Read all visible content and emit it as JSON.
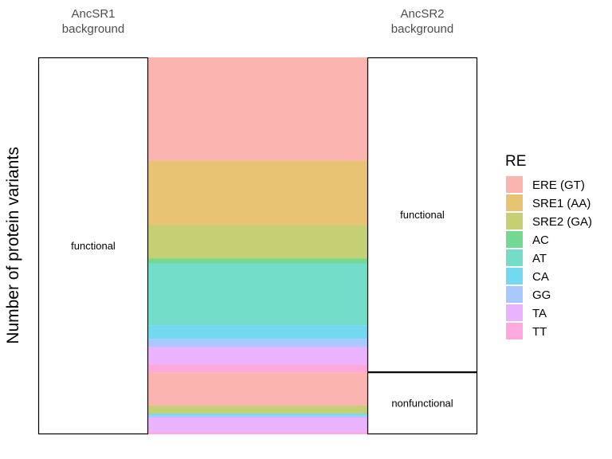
{
  "chart_data": {
    "type": "alluvial",
    "ylabel": "Number of protein variants",
    "axes": [
      {
        "header": [
          "AncSR1",
          "background"
        ],
        "strata": [
          {
            "label": "functional",
            "value": 474
          }
        ]
      },
      {
        "header": [
          "AncSR2",
          "background"
        ],
        "strata": [
          {
            "label": "functional",
            "value": 396
          },
          {
            "label": "nonfunctional",
            "value": 78
          }
        ]
      }
    ],
    "legend": {
      "title": "RE",
      "position": "right",
      "entries": [
        {
          "label": "ERE (GT)",
          "color": "#F8766D"
        },
        {
          "label": "SRE1 (AA)",
          "color": "#D39200"
        },
        {
          "label": "SRE2 (GA)",
          "color": "#93AA00"
        },
        {
          "label": "AC",
          "color": "#00BA38"
        },
        {
          "label": "AT",
          "color": "#00C19F"
        },
        {
          "label": "CA",
          "color": "#00B9E3"
        },
        {
          "label": "GG",
          "color": "#619CFF"
        },
        {
          "label": "TA",
          "color": "#DB72FB"
        },
        {
          "label": "TT",
          "color": "#FF61C3"
        }
      ]
    },
    "flows": [
      {
        "re": "ERE (GT)",
        "to": "functional",
        "value": 130
      },
      {
        "re": "SRE1 (AA)",
        "to": "functional",
        "value": 81
      },
      {
        "re": "SRE2 (GA)",
        "to": "functional",
        "value": 42
      },
      {
        "re": "AC",
        "to": "functional",
        "value": 6
      },
      {
        "re": "AT",
        "to": "functional",
        "value": 78
      },
      {
        "re": "CA",
        "to": "functional",
        "value": 17
      },
      {
        "re": "GG",
        "to": "functional",
        "value": 10
      },
      {
        "re": "TA",
        "to": "functional",
        "value": 22
      },
      {
        "re": "TT",
        "to": "functional",
        "value": 10
      },
      {
        "re": "ERE (GT)",
        "to": "nonfunctional",
        "value": 42
      },
      {
        "re": "SRE2 (GA)",
        "to": "nonfunctional",
        "value": 10
      },
      {
        "re": "CA",
        "to": "nonfunctional",
        "value": 2
      },
      {
        "re": "GG",
        "to": "nonfunctional",
        "value": 3
      },
      {
        "re": "TA",
        "to": "nonfunctional",
        "value": 18
      },
      {
        "re": "TT",
        "to": "nonfunctional",
        "value": 3
      }
    ]
  }
}
